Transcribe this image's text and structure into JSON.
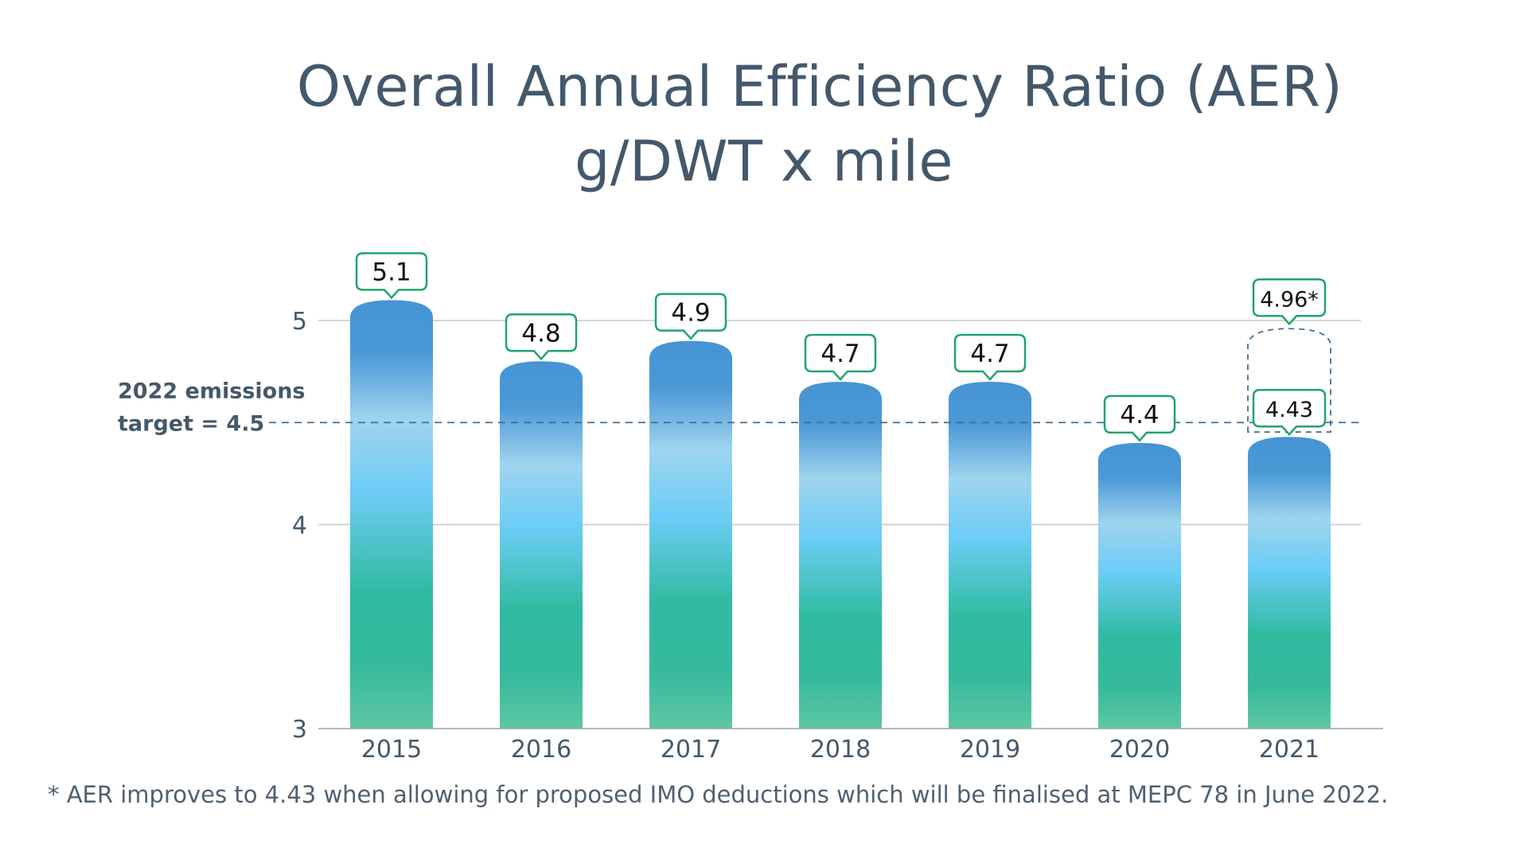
{
  "title": {
    "line1": "Overall Annual Efficiency Ratio (AER)",
    "line2": "g/DWT x mile"
  },
  "footnote": "* AER improves to 4.43 when allowing for proposed IMO deductions which will be finalised at MEPC 78 in June 2022.",
  "colors": {
    "text": "#44586b",
    "label_border": "#1fa46f",
    "bar_top": "#4896d5",
    "bar_mid": "#69cbf5",
    "bar_bottom": "#2db89e",
    "target_line": "#3f6f99",
    "grid": "#c8c8c8"
  },
  "chart_data": {
    "type": "bar",
    "categories": [
      "2015",
      "2016",
      "2017",
      "2018",
      "2019",
      "2020",
      "2021"
    ],
    "values": [
      5.1,
      4.8,
      4.9,
      4.7,
      4.7,
      4.4,
      4.43
    ],
    "data_labels": [
      "5.1",
      "4.8",
      "4.9",
      "4.7",
      "4.7",
      "4.4",
      "4.43"
    ],
    "ylim": [
      3,
      5
    ],
    "yticks": [
      3,
      4,
      5
    ],
    "ytick_labels": [
      "3",
      "4",
      "5"
    ],
    "grid": true,
    "target": {
      "value": 4.5,
      "label_line1": "2022 emissions",
      "label_line2": "target = 4.5"
    },
    "annotation_2021": {
      "category": "2021",
      "value": 4.96,
      "label": "4.96*"
    }
  }
}
